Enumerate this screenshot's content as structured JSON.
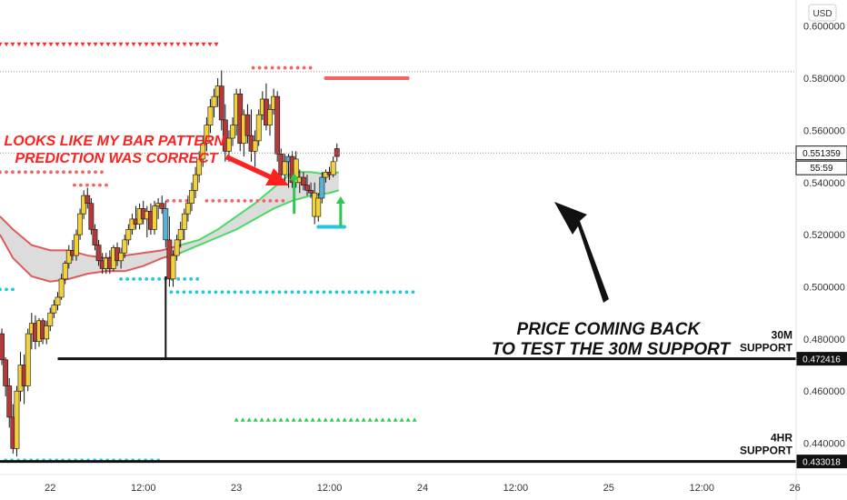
{
  "chart_data": {
    "type": "candlestick",
    "currency": "USD",
    "ylim": [
      0.428,
      0.61
    ],
    "xlim": [
      -0.27,
      4.28
    ],
    "y_ticks": [
      0.44,
      0.46,
      0.48,
      0.5,
      0.52,
      0.54,
      0.56,
      0.58,
      0.6
    ],
    "y_tick_labels": [
      "0.440000",
      "0.460000",
      "0.480000",
      "0.500000",
      "0.520000",
      "0.540000",
      "0.560000",
      "0.580000",
      "0.600000"
    ],
    "x_ticks": [
      {
        "x": 0,
        "label": "22"
      },
      {
        "x": 0.5,
        "label": "12:00"
      },
      {
        "x": 1,
        "label": "23"
      },
      {
        "x": 1.5,
        "label": "12:00"
      },
      {
        "x": 2,
        "label": "24"
      },
      {
        "x": 2.5,
        "label": "12:00"
      },
      {
        "x": 3,
        "label": "25"
      },
      {
        "x": 3.5,
        "label": "12:00"
      },
      {
        "x": 4,
        "label": "26"
      }
    ],
    "last_price": {
      "value": 0.551359,
      "label": "0.551359",
      "countdown": "55:59"
    },
    "candle_colors": {
      "up": "#f2d23a",
      "down": "#b23a3a",
      "highlight_blue": "#5ab0d6",
      "highlight_green": "#2ec84e",
      "wick": "#111111"
    },
    "candles": [
      {
        "x": -0.26,
        "o": 0.482,
        "h": 0.484,
        "l": 0.47,
        "c": 0.472,
        "color": "down"
      },
      {
        "x": -0.24,
        "o": 0.472,
        "h": 0.473,
        "l": 0.458,
        "c": 0.462,
        "color": "down"
      },
      {
        "x": -0.22,
        "o": 0.462,
        "h": 0.465,
        "l": 0.446,
        "c": 0.45,
        "color": "down"
      },
      {
        "x": -0.2,
        "o": 0.45,
        "h": 0.455,
        "l": 0.436,
        "c": 0.438,
        "color": "down"
      },
      {
        "x": -0.18,
        "o": 0.438,
        "h": 0.462,
        "l": 0.435,
        "c": 0.46,
        "color": "up"
      },
      {
        "x": -0.16,
        "o": 0.46,
        "h": 0.475,
        "l": 0.456,
        "c": 0.47,
        "color": "up"
      },
      {
        "x": -0.14,
        "o": 0.47,
        "h": 0.474,
        "l": 0.455,
        "c": 0.462,
        "color": "down"
      },
      {
        "x": -0.12,
        "o": 0.462,
        "h": 0.484,
        "l": 0.46,
        "c": 0.482,
        "color": "up"
      },
      {
        "x": -0.1,
        "o": 0.482,
        "h": 0.49,
        "l": 0.476,
        "c": 0.486,
        "color": "up"
      },
      {
        "x": -0.08,
        "o": 0.486,
        "h": 0.489,
        "l": 0.476,
        "c": 0.479,
        "color": "down"
      },
      {
        "x": -0.06,
        "o": 0.479,
        "h": 0.488,
        "l": 0.477,
        "c": 0.487,
        "color": "up"
      },
      {
        "x": -0.04,
        "o": 0.487,
        "h": 0.488,
        "l": 0.478,
        "c": 0.48,
        "color": "down"
      },
      {
        "x": -0.02,
        "o": 0.48,
        "h": 0.487,
        "l": 0.478,
        "c": 0.485,
        "color": "up"
      },
      {
        "x": 0.0,
        "o": 0.485,
        "h": 0.492,
        "l": 0.483,
        "c": 0.49,
        "color": "up"
      },
      {
        "x": 0.02,
        "o": 0.49,
        "h": 0.495,
        "l": 0.488,
        "c": 0.493,
        "color": "up"
      },
      {
        "x": 0.04,
        "o": 0.493,
        "h": 0.498,
        "l": 0.491,
        "c": 0.496,
        "color": "up"
      },
      {
        "x": 0.06,
        "o": 0.496,
        "h": 0.505,
        "l": 0.495,
        "c": 0.503,
        "color": "up"
      },
      {
        "x": 0.08,
        "o": 0.503,
        "h": 0.51,
        "l": 0.501,
        "c": 0.509,
        "color": "up"
      },
      {
        "x": 0.1,
        "o": 0.509,
        "h": 0.516,
        "l": 0.507,
        "c": 0.514,
        "color": "up"
      },
      {
        "x": 0.12,
        "o": 0.514,
        "h": 0.518,
        "l": 0.51,
        "c": 0.512,
        "color": "down"
      },
      {
        "x": 0.14,
        "o": 0.512,
        "h": 0.522,
        "l": 0.51,
        "c": 0.52,
        "color": "up"
      },
      {
        "x": 0.16,
        "o": 0.52,
        "h": 0.53,
        "l": 0.518,
        "c": 0.528,
        "color": "up"
      },
      {
        "x": 0.18,
        "o": 0.528,
        "h": 0.537,
        "l": 0.526,
        "c": 0.535,
        "color": "up"
      },
      {
        "x": 0.2,
        "o": 0.535,
        "h": 0.538,
        "l": 0.53,
        "c": 0.532,
        "color": "down"
      },
      {
        "x": 0.22,
        "o": 0.532,
        "h": 0.534,
        "l": 0.52,
        "c": 0.522,
        "color": "down"
      },
      {
        "x": 0.24,
        "o": 0.522,
        "h": 0.524,
        "l": 0.514,
        "c": 0.516,
        "color": "down"
      },
      {
        "x": 0.26,
        "o": 0.516,
        "h": 0.518,
        "l": 0.508,
        "c": 0.51,
        "color": "down"
      },
      {
        "x": 0.28,
        "o": 0.51,
        "h": 0.513,
        "l": 0.505,
        "c": 0.507,
        "color": "down"
      },
      {
        "x": 0.3,
        "o": 0.507,
        "h": 0.513,
        "l": 0.505,
        "c": 0.511,
        "color": "up"
      },
      {
        "x": 0.32,
        "o": 0.511,
        "h": 0.514,
        "l": 0.505,
        "c": 0.507,
        "color": "down"
      },
      {
        "x": 0.34,
        "o": 0.507,
        "h": 0.516,
        "l": 0.506,
        "c": 0.515,
        "color": "up"
      },
      {
        "x": 0.36,
        "o": 0.515,
        "h": 0.517,
        "l": 0.508,
        "c": 0.51,
        "color": "down"
      },
      {
        "x": 0.38,
        "o": 0.51,
        "h": 0.515,
        "l": 0.507,
        "c": 0.513,
        "color": "up"
      },
      {
        "x": 0.4,
        "o": 0.513,
        "h": 0.52,
        "l": 0.511,
        "c": 0.518,
        "color": "up"
      },
      {
        "x": 0.42,
        "o": 0.518,
        "h": 0.524,
        "l": 0.516,
        "c": 0.522,
        "color": "up"
      },
      {
        "x": 0.44,
        "o": 0.522,
        "h": 0.528,
        "l": 0.52,
        "c": 0.526,
        "color": "up"
      },
      {
        "x": 0.46,
        "o": 0.526,
        "h": 0.531,
        "l": 0.522,
        "c": 0.524,
        "color": "down"
      },
      {
        "x": 0.48,
        "o": 0.524,
        "h": 0.532,
        "l": 0.522,
        "c": 0.53,
        "color": "up"
      },
      {
        "x": 0.5,
        "o": 0.53,
        "h": 0.533,
        "l": 0.524,
        "c": 0.526,
        "color": "down"
      },
      {
        "x": 0.52,
        "o": 0.526,
        "h": 0.531,
        "l": 0.519,
        "c": 0.529,
        "color": "up"
      },
      {
        "x": 0.54,
        "o": 0.529,
        "h": 0.532,
        "l": 0.52,
        "c": 0.522,
        "color": "down"
      },
      {
        "x": 0.56,
        "o": 0.522,
        "h": 0.533,
        "l": 0.52,
        "c": 0.531,
        "color": "up"
      },
      {
        "x": 0.58,
        "o": 0.531,
        "h": 0.534,
        "l": 0.526,
        "c": 0.532,
        "color": "up"
      },
      {
        "x": 0.6,
        "o": 0.532,
        "h": 0.535,
        "l": 0.528,
        "c": 0.53,
        "color": "down"
      },
      {
        "x": 0.62,
        "o": 0.53,
        "h": 0.533,
        "l": 0.515,
        "c": 0.518,
        "color": "blue"
      },
      {
        "x": 0.64,
        "o": 0.518,
        "h": 0.527,
        "l": 0.5,
        "c": 0.503,
        "color": "down"
      },
      {
        "x": 0.66,
        "o": 0.503,
        "h": 0.514,
        "l": 0.5,
        "c": 0.512,
        "color": "up"
      },
      {
        "x": 0.68,
        "o": 0.512,
        "h": 0.52,
        "l": 0.51,
        "c": 0.518,
        "color": "up"
      },
      {
        "x": 0.7,
        "o": 0.518,
        "h": 0.525,
        "l": 0.515,
        "c": 0.522,
        "color": "up"
      },
      {
        "x": 0.72,
        "o": 0.522,
        "h": 0.53,
        "l": 0.518,
        "c": 0.528,
        "color": "up"
      },
      {
        "x": 0.74,
        "o": 0.528,
        "h": 0.535,
        "l": 0.525,
        "c": 0.532,
        "color": "up"
      },
      {
        "x": 0.76,
        "o": 0.532,
        "h": 0.54,
        "l": 0.529,
        "c": 0.537,
        "color": "up"
      },
      {
        "x": 0.78,
        "o": 0.537,
        "h": 0.546,
        "l": 0.534,
        "c": 0.543,
        "color": "up"
      },
      {
        "x": 0.8,
        "o": 0.543,
        "h": 0.552,
        "l": 0.54,
        "c": 0.549,
        "color": "up"
      },
      {
        "x": 0.82,
        "o": 0.549,
        "h": 0.558,
        "l": 0.546,
        "c": 0.555,
        "color": "up"
      },
      {
        "x": 0.84,
        "o": 0.555,
        "h": 0.565,
        "l": 0.552,
        "c": 0.562,
        "color": "up"
      },
      {
        "x": 0.86,
        "o": 0.562,
        "h": 0.572,
        "l": 0.559,
        "c": 0.569,
        "color": "up"
      },
      {
        "x": 0.88,
        "o": 0.569,
        "h": 0.576,
        "l": 0.565,
        "c": 0.573,
        "color": "up"
      },
      {
        "x": 0.9,
        "o": 0.573,
        "h": 0.58,
        "l": 0.569,
        "c": 0.577,
        "color": "up"
      },
      {
        "x": 0.92,
        "o": 0.577,
        "h": 0.583,
        "l": 0.56,
        "c": 0.564,
        "color": "down"
      },
      {
        "x": 0.94,
        "o": 0.564,
        "h": 0.57,
        "l": 0.548,
        "c": 0.552,
        "color": "down"
      },
      {
        "x": 0.96,
        "o": 0.552,
        "h": 0.56,
        "l": 0.548,
        "c": 0.557,
        "color": "up"
      },
      {
        "x": 0.98,
        "o": 0.557,
        "h": 0.565,
        "l": 0.554,
        "c": 0.562,
        "color": "up"
      },
      {
        "x": 1.0,
        "o": 0.562,
        "h": 0.576,
        "l": 0.558,
        "c": 0.574,
        "color": "up"
      },
      {
        "x": 1.02,
        "o": 0.574,
        "h": 0.576,
        "l": 0.552,
        "c": 0.555,
        "color": "down"
      },
      {
        "x": 1.04,
        "o": 0.555,
        "h": 0.568,
        "l": 0.55,
        "c": 0.566,
        "color": "up"
      },
      {
        "x": 1.06,
        "o": 0.566,
        "h": 0.57,
        "l": 0.555,
        "c": 0.558,
        "color": "down"
      },
      {
        "x": 1.08,
        "o": 0.558,
        "h": 0.568,
        "l": 0.548,
        "c": 0.552,
        "color": "down"
      },
      {
        "x": 1.1,
        "o": 0.552,
        "h": 0.56,
        "l": 0.546,
        "c": 0.556,
        "color": "up"
      },
      {
        "x": 1.12,
        "o": 0.556,
        "h": 0.568,
        "l": 0.554,
        "c": 0.566,
        "color": "up"
      },
      {
        "x": 1.14,
        "o": 0.566,
        "h": 0.575,
        "l": 0.564,
        "c": 0.572,
        "color": "up"
      },
      {
        "x": 1.16,
        "o": 0.572,
        "h": 0.578,
        "l": 0.56,
        "c": 0.562,
        "color": "down"
      },
      {
        "x": 1.18,
        "o": 0.562,
        "h": 0.57,
        "l": 0.558,
        "c": 0.568,
        "color": "up"
      },
      {
        "x": 1.2,
        "o": 0.568,
        "h": 0.576,
        "l": 0.566,
        "c": 0.573,
        "color": "up"
      },
      {
        "x": 1.22,
        "o": 0.573,
        "h": 0.575,
        "l": 0.548,
        "c": 0.551,
        "color": "down"
      },
      {
        "x": 1.24,
        "o": 0.551,
        "h": 0.553,
        "l": 0.541,
        "c": 0.543,
        "color": "down"
      },
      {
        "x": 1.26,
        "o": 0.543,
        "h": 0.551,
        "l": 0.539,
        "c": 0.548,
        "color": "up"
      },
      {
        "x": 1.28,
        "o": 0.548,
        "h": 0.551,
        "l": 0.538,
        "c": 0.55,
        "color": "blue"
      },
      {
        "x": 1.3,
        "o": 0.55,
        "h": 0.552,
        "l": 0.538,
        "c": 0.54,
        "color": "down"
      },
      {
        "x": 1.32,
        "o": 0.54,
        "h": 0.552,
        "l": 0.538,
        "c": 0.549,
        "color": "up"
      },
      {
        "x": 1.34,
        "o": 0.54,
        "h": 0.545,
        "l": 0.536,
        "c": 0.542,
        "color": "up"
      },
      {
        "x": 1.36,
        "o": 0.542,
        "h": 0.544,
        "l": 0.537,
        "c": 0.539,
        "color": "down"
      },
      {
        "x": 1.38,
        "o": 0.539,
        "h": 0.543,
        "l": 0.535,
        "c": 0.537,
        "color": "down"
      },
      {
        "x": 1.4,
        "o": 0.537,
        "h": 0.54,
        "l": 0.534,
        "c": 0.536,
        "color": "down"
      },
      {
        "x": 1.42,
        "o": 0.536,
        "h": 0.54,
        "l": 0.524,
        "c": 0.527,
        "color": "up"
      },
      {
        "x": 1.44,
        "o": 0.527,
        "h": 0.536,
        "l": 0.525,
        "c": 0.534,
        "color": "up"
      },
      {
        "x": 1.46,
        "o": 0.534,
        "h": 0.544,
        "l": 0.532,
        "c": 0.542,
        "color": "blue"
      },
      {
        "x": 1.48,
        "o": 0.542,
        "h": 0.545,
        "l": 0.54,
        "c": 0.544,
        "color": "up"
      },
      {
        "x": 1.5,
        "o": 0.544,
        "h": 0.546,
        "l": 0.541,
        "c": 0.543,
        "color": "down"
      },
      {
        "x": 1.52,
        "o": 0.543,
        "h": 0.55,
        "l": 0.542,
        "c": 0.548,
        "color": "up"
      },
      {
        "x": 1.54,
        "o": 0.553,
        "h": 0.555,
        "l": 0.548,
        "c": 0.55,
        "color": "down"
      }
    ],
    "ema_band": {
      "x": [
        -0.27,
        -0.2,
        -0.1,
        0.0,
        0.1,
        0.2,
        0.3,
        0.4,
        0.5,
        0.6,
        0.7,
        0.8,
        0.9,
        1.0,
        1.1,
        1.2,
        1.3,
        1.4,
        1.5,
        1.55
      ],
      "upper": [
        0.527,
        0.522,
        0.516,
        0.514,
        0.514,
        0.512,
        0.511,
        0.512,
        0.513,
        0.514,
        0.516,
        0.518,
        0.522,
        0.527,
        0.532,
        0.538,
        0.544,
        0.544,
        0.543,
        0.544
      ],
      "lower": [
        0.52,
        0.511,
        0.504,
        0.502,
        0.503,
        0.505,
        0.506,
        0.506,
        0.508,
        0.511,
        0.513,
        0.516,
        0.519,
        0.522,
        0.526,
        0.53,
        0.533,
        0.535,
        0.536,
        0.537
      ],
      "green_from_x": 0.78,
      "red_color": "#e05a5a",
      "green_color": "#4cd964",
      "fill_color": "#d6d6d6"
    },
    "dotted_levels": [
      {
        "y": 0.593,
        "x0": -0.27,
        "x1": 0.91,
        "style": "triangles-down",
        "color": "#ff2a2a"
      },
      {
        "y": 0.584,
        "x0": 1.09,
        "x1": 1.43,
        "style": "dots",
        "color": "#f26565"
      },
      {
        "y": 0.544,
        "x0": -0.27,
        "x1": 0.3,
        "style": "dots",
        "color": "#f26565"
      },
      {
        "y": 0.539,
        "x0": 0.13,
        "x1": 0.33,
        "style": "dots",
        "color": "#f26565"
      },
      {
        "y": 0.533,
        "x0": 0.63,
        "x1": 0.8,
        "style": "dots",
        "color": "#f26565"
      },
      {
        "y": 0.533,
        "x0": 0.84,
        "x1": 1.27,
        "style": "dots",
        "color": "#f26565"
      },
      {
        "y": 0.503,
        "x0": 0.38,
        "x1": 0.8,
        "style": "dots",
        "color": "#1ec8e0"
      },
      {
        "y": 0.499,
        "x0": -0.27,
        "x1": -0.2,
        "style": "dots",
        "color": "#1ec8e0"
      },
      {
        "y": 0.498,
        "x0": 0.65,
        "x1": 1.98,
        "style": "dots",
        "color": "#1ec8e0"
      },
      {
        "y": 0.449,
        "x0": 1.0,
        "x1": 1.97,
        "style": "triangles-up",
        "color": "#2ec84e"
      },
      {
        "y": 0.4335,
        "x0": -0.24,
        "x1": 0.59,
        "style": "dots",
        "color": "#1ec8e0"
      }
    ],
    "solid_levels": [
      {
        "y": 0.58,
        "x0": 1.48,
        "x1": 1.92,
        "color": "#f26565",
        "width": 4
      },
      {
        "y": 0.523,
        "x0": 1.44,
        "x1": 1.58,
        "color": "#1ec8e0",
        "width": 4
      }
    ],
    "support_lines": [
      {
        "y": 0.472416,
        "x0": 0.04,
        "x1": 4.28,
        "label": "30M\nSUPPORT",
        "price_label": "0.472416"
      },
      {
        "y": 0.433018,
        "x0": -0.27,
        "x1": 4.28,
        "label": "4HR\nSUPPORT",
        "price_label": "0.433018"
      }
    ],
    "spike_line": {
      "x": 0.62,
      "y_top": 0.504,
      "y_bottom": 0.472
    },
    "gray_dotted_line": {
      "y": 0.5825
    },
    "annotations": [
      {
        "text": "LOOKS LIKE MY BAR PATTERN\nPREDICTION WAS CORRECT",
        "color": "#ff2020"
      },
      {
        "text": "PRICE COMING BACK\nTO TEST THE 30M SUPPORT",
        "color": "#111111"
      }
    ],
    "green_up_arrows": [
      {
        "x": 1.31,
        "y_from": 0.528,
        "y_to": 0.543
      },
      {
        "x": 1.56,
        "y_from": 0.523,
        "y_to": 0.534
      }
    ]
  }
}
